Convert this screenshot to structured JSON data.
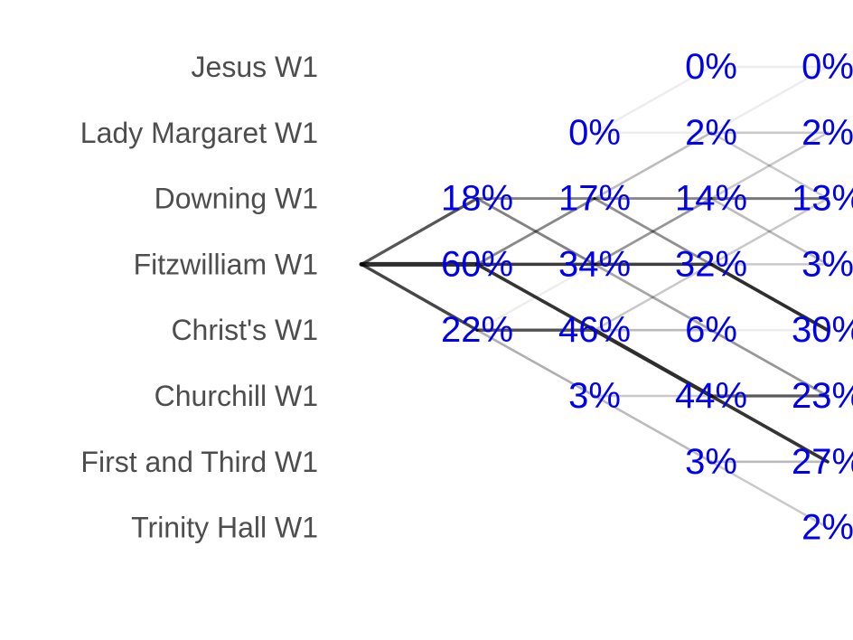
{
  "chart_data": {
    "type": "line",
    "title": "",
    "xlabel": "",
    "ylabel": "",
    "grid": false,
    "legend": "none",
    "label_color": "#0000ee",
    "line_color": "#000000",
    "row_labels": [
      "Jesus W1",
      "Lady Margaret W1",
      "Downing W1",
      "Fitzwilliam W1",
      "Christ's W1",
      "Churchill W1",
      "First and Third W1",
      "Trinity Hall W1"
    ],
    "steps": [
      0,
      1,
      2,
      3,
      4
    ],
    "cells": [
      {
        "step": 1,
        "row": 2,
        "value": 18
      },
      {
        "step": 1,
        "row": 3,
        "value": 60
      },
      {
        "step": 1,
        "row": 4,
        "value": 22
      },
      {
        "step": 2,
        "row": 1,
        "value": 0
      },
      {
        "step": 2,
        "row": 2,
        "value": 17
      },
      {
        "step": 2,
        "row": 3,
        "value": 34
      },
      {
        "step": 2,
        "row": 4,
        "value": 46
      },
      {
        "step": 2,
        "row": 5,
        "value": 3
      },
      {
        "step": 3,
        "row": 0,
        "value": 0
      },
      {
        "step": 3,
        "row": 1,
        "value": 2
      },
      {
        "step": 3,
        "row": 2,
        "value": 14
      },
      {
        "step": 3,
        "row": 3,
        "value": 32
      },
      {
        "step": 3,
        "row": 4,
        "value": 6
      },
      {
        "step": 3,
        "row": 5,
        "value": 44
      },
      {
        "step": 3,
        "row": 6,
        "value": 3
      },
      {
        "step": 4,
        "row": 0,
        "value": 0
      },
      {
        "step": 4,
        "row": 1,
        "value": 2
      },
      {
        "step": 4,
        "row": 2,
        "value": 13
      },
      {
        "step": 4,
        "row": 3,
        "value": 3
      },
      {
        "step": 4,
        "row": 4,
        "value": 30
      },
      {
        "step": 4,
        "row": 5,
        "value": 23
      },
      {
        "step": 4,
        "row": 6,
        "value": 27
      },
      {
        "step": 4,
        "row": 7,
        "value": 2
      }
    ],
    "transitions": [
      {
        "from_step": 0,
        "from_row": 3,
        "to_row": 2,
        "weight": 0.18
      },
      {
        "from_step": 0,
        "from_row": 3,
        "to_row": 3,
        "weight": 0.6
      },
      {
        "from_step": 0,
        "from_row": 3,
        "to_row": 4,
        "weight": 0.22
      },
      {
        "from_step": 1,
        "from_row": 2,
        "to_row": 2,
        "weight": 0.09
      },
      {
        "from_step": 1,
        "from_row": 2,
        "to_row": 3,
        "weight": 0.09
      },
      {
        "from_step": 1,
        "from_row": 3,
        "to_row": 2,
        "weight": 0.08
      },
      {
        "from_step": 1,
        "from_row": 3,
        "to_row": 3,
        "weight": 0.25
      },
      {
        "from_step": 1,
        "from_row": 3,
        "to_row": 4,
        "weight": 0.27
      },
      {
        "from_step": 1,
        "from_row": 4,
        "to_row": 3,
        "weight": 0.0
      },
      {
        "from_step": 1,
        "from_row": 4,
        "to_row": 4,
        "weight": 0.19
      },
      {
        "from_step": 1,
        "from_row": 4,
        "to_row": 5,
        "weight": 0.03
      },
      {
        "from_step": 2,
        "from_row": 1,
        "to_row": 0,
        "weight": 0.0
      },
      {
        "from_step": 2,
        "from_row": 1,
        "to_row": 1,
        "weight": 0.0
      },
      {
        "from_step": 2,
        "from_row": 2,
        "to_row": 1,
        "weight": 0.02
      },
      {
        "from_step": 2,
        "from_row": 2,
        "to_row": 2,
        "weight": 0.08
      },
      {
        "from_step": 2,
        "from_row": 2,
        "to_row": 3,
        "weight": 0.07
      },
      {
        "from_step": 2,
        "from_row": 3,
        "to_row": 2,
        "weight": 0.06
      },
      {
        "from_step": 2,
        "from_row": 3,
        "to_row": 3,
        "weight": 0.24
      },
      {
        "from_step": 2,
        "from_row": 3,
        "to_row": 4,
        "weight": 0.04
      },
      {
        "from_step": 2,
        "from_row": 4,
        "to_row": 3,
        "weight": 0.01
      },
      {
        "from_step": 2,
        "from_row": 4,
        "to_row": 4,
        "weight": 0.02
      },
      {
        "from_step": 2,
        "from_row": 4,
        "to_row": 5,
        "weight": 0.43
      },
      {
        "from_step": 2,
        "from_row": 5,
        "to_row": 5,
        "weight": 0.01
      },
      {
        "from_step": 2,
        "from_row": 5,
        "to_row": 6,
        "weight": 0.02
      },
      {
        "from_step": 3,
        "from_row": 0,
        "to_row": 0,
        "weight": 0.0
      },
      {
        "from_step": 3,
        "from_row": 1,
        "to_row": 0,
        "weight": 0.0
      },
      {
        "from_step": 3,
        "from_row": 1,
        "to_row": 1,
        "weight": 0.01
      },
      {
        "from_step": 3,
        "from_row": 1,
        "to_row": 2,
        "weight": 0.01
      },
      {
        "from_step": 3,
        "from_row": 2,
        "to_row": 1,
        "weight": 0.01
      },
      {
        "from_step": 3,
        "from_row": 2,
        "to_row": 2,
        "weight": 0.11
      },
      {
        "from_step": 3,
        "from_row": 2,
        "to_row": 3,
        "weight": 0.02
      },
      {
        "from_step": 3,
        "from_row": 3,
        "to_row": 2,
        "weight": 0.01
      },
      {
        "from_step": 3,
        "from_row": 3,
        "to_row": 3,
        "weight": 0.01
      },
      {
        "from_step": 3,
        "from_row": 3,
        "to_row": 4,
        "weight": 0.3
      },
      {
        "from_step": 3,
        "from_row": 4,
        "to_row": 4,
        "weight": 0.0
      },
      {
        "from_step": 3,
        "from_row": 4,
        "to_row": 5,
        "weight": 0.06
      },
      {
        "from_step": 3,
        "from_row": 5,
        "to_row": 5,
        "weight": 0.17
      },
      {
        "from_step": 3,
        "from_row": 5,
        "to_row": 6,
        "weight": 0.27
      },
      {
        "from_step": 3,
        "from_row": 6,
        "to_row": 6,
        "weight": 0.02
      },
      {
        "from_step": 3,
        "from_row": 6,
        "to_row": 7,
        "weight": 0.01
      }
    ]
  }
}
